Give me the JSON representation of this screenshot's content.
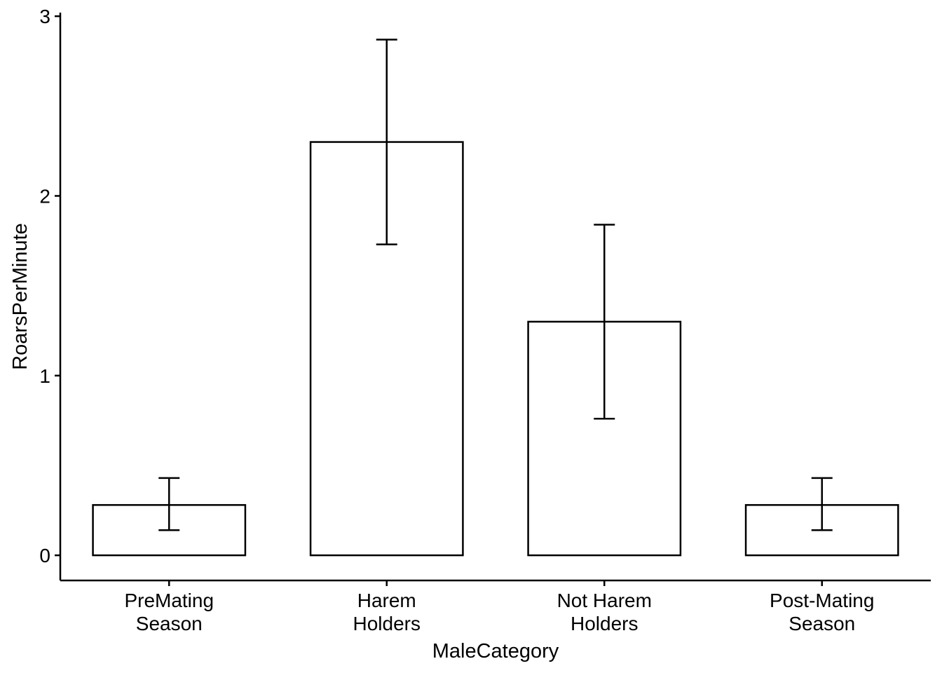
{
  "chart_data": {
    "type": "bar",
    "categories": [
      [
        "PreMating",
        "Season"
      ],
      [
        "Harem",
        "Holders"
      ],
      [
        "Not Harem",
        "Holders"
      ],
      [
        "Post-Mating",
        "Season"
      ]
    ],
    "values": [
      0.28,
      2.3,
      1.3,
      0.28
    ],
    "error_low": [
      0.14,
      1.73,
      0.76,
      0.14
    ],
    "error_high": [
      0.43,
      2.87,
      1.84,
      0.43
    ],
    "xlabel": "MaleCategory",
    "ylabel": "RoarsPerMinute",
    "ylim": [
      -0.14,
      3.02
    ],
    "yticks": [
      "0",
      "1",
      "2",
      "3"
    ],
    "bar_fill": "#ffffff",
    "bar_stroke": "#000000",
    "grid": false
  }
}
